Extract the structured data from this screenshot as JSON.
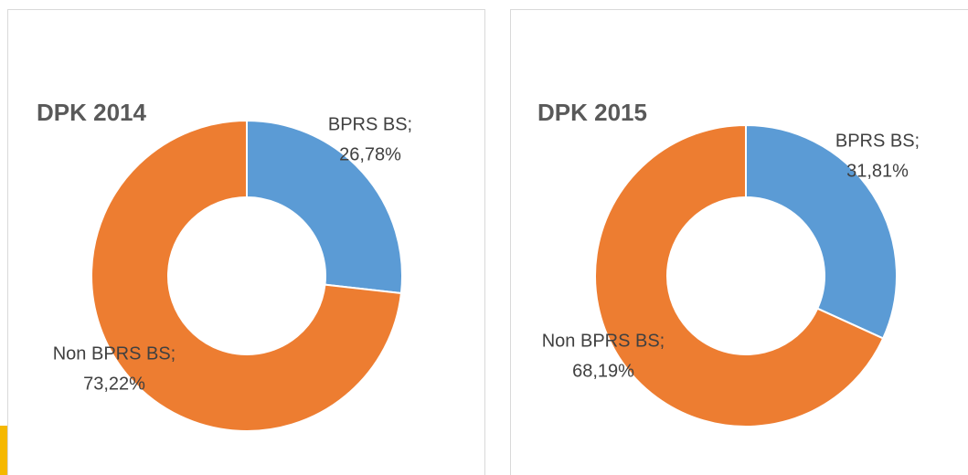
{
  "chart_data": [
    {
      "type": "donut",
      "title": "DPK 2014",
      "categories": [
        "BPRS BS;",
        "Non BPRS BS;"
      ],
      "values": [
        26.78,
        73.22
      ],
      "value_labels": [
        "26,78%",
        "73,22%"
      ],
      "colors": [
        "#5b9bd5",
        "#ed7d31"
      ]
    },
    {
      "type": "donut",
      "title": "DPK 2015",
      "categories": [
        "BPRS BS;",
        "Non BPRS BS;"
      ],
      "values": [
        31.81,
        68.19
      ],
      "value_labels": [
        "31,81%",
        "68,19%"
      ],
      "colors": [
        "#5b9bd5",
        "#ed7d31"
      ]
    }
  ]
}
